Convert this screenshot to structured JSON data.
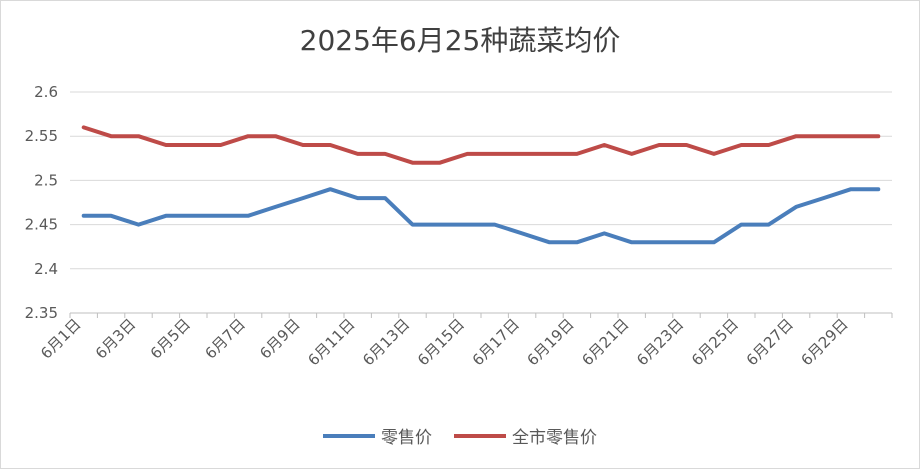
{
  "chart_data": {
    "type": "line",
    "title": "2025年6月25种蔬菜均价",
    "xlabel": "",
    "ylabel": "",
    "ylim": [
      2.35,
      2.6
    ],
    "yticks": [
      "2.6",
      "2.55",
      "2.5",
      "2.45",
      "2.4",
      "2.35"
    ],
    "categories": [
      "6月1日",
      "6月2日",
      "6月3日",
      "6月4日",
      "6月5日",
      "6月6日",
      "6月7日",
      "6月8日",
      "6月9日",
      "6月10日",
      "6月11日",
      "6月12日",
      "6月13日",
      "6月14日",
      "6月15日",
      "6月16日",
      "6月17日",
      "6月18日",
      "6月19日",
      "6月20日",
      "6月21日",
      "6月22日",
      "6月23日",
      "6月24日",
      "6月25日",
      "6月26日",
      "6月27日",
      "6月28日",
      "6月29日",
      "6月30日"
    ],
    "shown_tick_labels": [
      "6月1日",
      "6月3日",
      "6月5日",
      "6月7日",
      "6月9日",
      "6月11日",
      "6月13日",
      "6月15日",
      "6月17日",
      "6月19日",
      "6月21日",
      "6月23日",
      "6月25日",
      "6月27日",
      "6月29日"
    ],
    "legend_position": "bottom",
    "grid": true,
    "series": [
      {
        "name": "零售价",
        "color": "#4a7ebb",
        "values": [
          2.46,
          2.46,
          2.45,
          2.46,
          2.46,
          2.46,
          2.46,
          2.47,
          2.48,
          2.49,
          2.48,
          2.48,
          2.45,
          2.45,
          2.45,
          2.45,
          2.44,
          2.43,
          2.43,
          2.44,
          2.43,
          2.43,
          2.43,
          2.43,
          2.45,
          2.45,
          2.47,
          2.48,
          2.49,
          2.49
        ]
      },
      {
        "name": "全市零售价",
        "color": "#be4b48",
        "values": [
          2.56,
          2.55,
          2.55,
          2.54,
          2.54,
          2.54,
          2.55,
          2.55,
          2.54,
          2.54,
          2.53,
          2.53,
          2.52,
          2.52,
          2.53,
          2.53,
          2.53,
          2.53,
          2.53,
          2.54,
          2.53,
          2.54,
          2.54,
          2.53,
          2.54,
          2.54,
          2.55,
          2.55,
          2.55,
          2.55
        ]
      }
    ]
  }
}
